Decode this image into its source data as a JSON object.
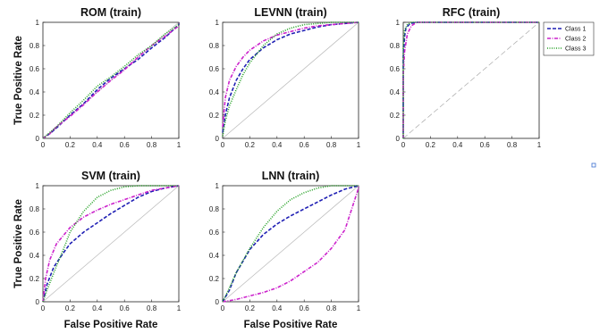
{
  "chart_data": [
    {
      "type": "line",
      "title": "ROM (train)",
      "xlabel": "",
      "ylabel": "True Positive Rate",
      "xlim": [
        0,
        1
      ],
      "ylim": [
        0,
        1
      ],
      "xticks": [
        "0",
        "0.2",
        "0.4",
        "0.6",
        "0.8",
        "1"
      ],
      "yticks": [
        "0",
        "0.2",
        "0.4",
        "0.6",
        "0.8",
        "1"
      ],
      "series": [
        {
          "name": "Class 1",
          "color": "#1f1fb4",
          "style": "dash",
          "points": [
            [
              0,
              0
            ],
            [
              0.05,
              0.04
            ],
            [
              0.1,
              0.09
            ],
            [
              0.2,
              0.2
            ],
            [
              0.3,
              0.3
            ],
            [
              0.4,
              0.42
            ],
            [
              0.5,
              0.52
            ],
            [
              0.6,
              0.6
            ],
            [
              0.7,
              0.68
            ],
            [
              0.8,
              0.78
            ],
            [
              0.9,
              0.87
            ],
            [
              1,
              0.98
            ],
            [
              1,
              1
            ]
          ]
        },
        {
          "name": "Class 2",
          "color": "#cc22cc",
          "style": "dashdot",
          "points": [
            [
              0,
              0
            ],
            [
              0.05,
              0.04
            ],
            [
              0.1,
              0.1
            ],
            [
              0.2,
              0.19
            ],
            [
              0.3,
              0.29
            ],
            [
              0.4,
              0.4
            ],
            [
              0.5,
              0.5
            ],
            [
              0.6,
              0.59
            ],
            [
              0.7,
              0.7
            ],
            [
              0.8,
              0.8
            ],
            [
              0.9,
              0.88
            ],
            [
              1,
              0.97
            ],
            [
              1,
              1
            ]
          ]
        },
        {
          "name": "Class 3",
          "color": "#22a022",
          "style": "dot",
          "points": [
            [
              0,
              0
            ],
            [
              0.05,
              0.05
            ],
            [
              0.1,
              0.1
            ],
            [
              0.2,
              0.22
            ],
            [
              0.3,
              0.33
            ],
            [
              0.4,
              0.45
            ],
            [
              0.5,
              0.53
            ],
            [
              0.6,
              0.62
            ],
            [
              0.7,
              0.72
            ],
            [
              0.8,
              0.8
            ],
            [
              0.9,
              0.9
            ],
            [
              1,
              0.98
            ],
            [
              1,
              1
            ]
          ]
        }
      ]
    },
    {
      "type": "line",
      "title": "LEVNN (train)",
      "xlabel": "",
      "ylabel": "",
      "xlim": [
        0,
        1
      ],
      "ylim": [
        0,
        1
      ],
      "xticks": [
        "0",
        "0.2",
        "0.4",
        "0.6",
        "0.8",
        "1"
      ],
      "yticks": [
        "0",
        "0.2",
        "0.4",
        "0.6",
        "0.8",
        "1"
      ],
      "series": [
        {
          "name": "Class 1",
          "color": "#1f1fb4",
          "style": "dash",
          "points": [
            [
              0,
              0.05
            ],
            [
              0.02,
              0.2
            ],
            [
              0.05,
              0.35
            ],
            [
              0.1,
              0.5
            ],
            [
              0.15,
              0.6
            ],
            [
              0.2,
              0.68
            ],
            [
              0.3,
              0.78
            ],
            [
              0.4,
              0.85
            ],
            [
              0.5,
              0.9
            ],
            [
              0.6,
              0.93
            ],
            [
              0.7,
              0.96
            ],
            [
              0.8,
              0.98
            ],
            [
              0.9,
              0.99
            ],
            [
              1,
              1
            ]
          ]
        },
        {
          "name": "Class 2",
          "color": "#cc22cc",
          "style": "dashdot",
          "points": [
            [
              0,
              0.1
            ],
            [
              0.02,
              0.35
            ],
            [
              0.05,
              0.5
            ],
            [
              0.1,
              0.62
            ],
            [
              0.15,
              0.7
            ],
            [
              0.2,
              0.76
            ],
            [
              0.3,
              0.84
            ],
            [
              0.4,
              0.89
            ],
            [
              0.5,
              0.92
            ],
            [
              0.6,
              0.95
            ],
            [
              0.7,
              0.97
            ],
            [
              0.8,
              0.98
            ],
            [
              0.9,
              0.99
            ],
            [
              1,
              1
            ]
          ]
        },
        {
          "name": "Class 3",
          "color": "#22a022",
          "style": "dot",
          "points": [
            [
              0,
              0.02
            ],
            [
              0.02,
              0.15
            ],
            [
              0.05,
              0.28
            ],
            [
              0.1,
              0.42
            ],
            [
              0.15,
              0.55
            ],
            [
              0.2,
              0.65
            ],
            [
              0.3,
              0.8
            ],
            [
              0.4,
              0.9
            ],
            [
              0.5,
              0.95
            ],
            [
              0.6,
              0.98
            ],
            [
              0.7,
              0.99
            ],
            [
              0.8,
              1
            ],
            [
              1,
              1
            ]
          ]
        }
      ]
    },
    {
      "type": "line",
      "title": "RFC (train)",
      "xlabel": "",
      "ylabel": "",
      "xlim": [
        0,
        1
      ],
      "ylim": [
        0,
        1
      ],
      "xticks": [
        "0",
        "0.2",
        "0.4",
        "0.6",
        "0.8",
        "1"
      ],
      "yticks": [
        "0",
        "0.2",
        "0.4",
        "0.6",
        "0.8",
        "1"
      ],
      "legend": {
        "position": "right",
        "entries": [
          "Class 1",
          "Class 2",
          "Class 3"
        ]
      },
      "series": [
        {
          "name": "Class 1",
          "color": "#1f1fb4",
          "style": "dash",
          "points": [
            [
              0,
              0
            ],
            [
              0,
              0.7
            ],
            [
              0.01,
              0.88
            ],
            [
              0.02,
              0.95
            ],
            [
              0.05,
              0.99
            ],
            [
              0.1,
              1
            ],
            [
              1,
              1
            ]
          ]
        },
        {
          "name": "Class 2",
          "color": "#cc22cc",
          "style": "dashdot",
          "points": [
            [
              0,
              0
            ],
            [
              0,
              0.55
            ],
            [
              0.01,
              0.75
            ],
            [
              0.03,
              0.9
            ],
            [
              0.06,
              0.97
            ],
            [
              0.1,
              1
            ],
            [
              1,
              1
            ]
          ]
        },
        {
          "name": "Class 3",
          "color": "#22a022",
          "style": "dot",
          "points": [
            [
              0,
              0
            ],
            [
              0,
              0.8
            ],
            [
              0.01,
              0.93
            ],
            [
              0.03,
              0.98
            ],
            [
              0.06,
              1
            ],
            [
              1,
              1
            ]
          ]
        }
      ]
    },
    {
      "type": "line",
      "title": "SVM (train)",
      "xlabel": "False Positive Rate",
      "ylabel": "True Positive Rate",
      "xlim": [
        0,
        1
      ],
      "ylim": [
        0,
        1
      ],
      "xticks": [
        "0",
        "0.2",
        "0.4",
        "0.6",
        "0.8",
        "1"
      ],
      "yticks": [
        "0",
        "0.2",
        "0.4",
        "0.6",
        "0.8",
        "1"
      ],
      "series": [
        {
          "name": "Class 1",
          "color": "#1f1fb4",
          "style": "dash",
          "points": [
            [
              0,
              0
            ],
            [
              0.03,
              0.15
            ],
            [
              0.08,
              0.3
            ],
            [
              0.15,
              0.42
            ],
            [
              0.2,
              0.5
            ],
            [
              0.3,
              0.6
            ],
            [
              0.4,
              0.68
            ],
            [
              0.5,
              0.76
            ],
            [
              0.6,
              0.83
            ],
            [
              0.7,
              0.9
            ],
            [
              0.8,
              0.95
            ],
            [
              0.9,
              0.98
            ],
            [
              1,
              1
            ]
          ]
        },
        {
          "name": "Class 2",
          "color": "#cc22cc",
          "style": "dashdot",
          "points": [
            [
              0,
              0
            ],
            [
              0.02,
              0.2
            ],
            [
              0.05,
              0.36
            ],
            [
              0.1,
              0.5
            ],
            [
              0.2,
              0.64
            ],
            [
              0.3,
              0.73
            ],
            [
              0.4,
              0.79
            ],
            [
              0.5,
              0.84
            ],
            [
              0.6,
              0.88
            ],
            [
              0.7,
              0.92
            ],
            [
              0.8,
              0.96
            ],
            [
              0.9,
              0.98
            ],
            [
              1,
              1
            ]
          ]
        },
        {
          "name": "Class 3",
          "color": "#22a022",
          "style": "dot",
          "points": [
            [
              0,
              0
            ],
            [
              0.03,
              0.1
            ],
            [
              0.08,
              0.25
            ],
            [
              0.15,
              0.45
            ],
            [
              0.2,
              0.6
            ],
            [
              0.3,
              0.78
            ],
            [
              0.4,
              0.9
            ],
            [
              0.5,
              0.96
            ],
            [
              0.6,
              0.99
            ],
            [
              0.7,
              1
            ],
            [
              1,
              1
            ]
          ]
        }
      ]
    },
    {
      "type": "line",
      "title": "LNN (train)",
      "xlabel": "False Positive Rate",
      "ylabel": "",
      "xlim": [
        0,
        1
      ],
      "ylim": [
        0,
        1
      ],
      "xticks": [
        "0",
        "0.2",
        "0.4",
        "0.6",
        "0.8",
        "1"
      ],
      "yticks": [
        "0",
        "0.2",
        "0.4",
        "0.6",
        "0.8",
        "1"
      ],
      "series": [
        {
          "name": "Class 1",
          "color": "#1f1fb4",
          "style": "dash",
          "points": [
            [
              0,
              0
            ],
            [
              0.05,
              0.1
            ],
            [
              0.1,
              0.25
            ],
            [
              0.2,
              0.45
            ],
            [
              0.3,
              0.58
            ],
            [
              0.4,
              0.67
            ],
            [
              0.5,
              0.74
            ],
            [
              0.6,
              0.8
            ],
            [
              0.7,
              0.86
            ],
            [
              0.8,
              0.92
            ],
            [
              0.9,
              0.97
            ],
            [
              1,
              1
            ]
          ]
        },
        {
          "name": "Class 2",
          "color": "#cc22cc",
          "style": "dashdot",
          "points": [
            [
              0,
              0
            ],
            [
              0.1,
              0.02
            ],
            [
              0.2,
              0.05
            ],
            [
              0.3,
              0.08
            ],
            [
              0.4,
              0.12
            ],
            [
              0.5,
              0.18
            ],
            [
              0.6,
              0.26
            ],
            [
              0.7,
              0.34
            ],
            [
              0.8,
              0.46
            ],
            [
              0.9,
              0.62
            ],
            [
              0.95,
              0.8
            ],
            [
              1,
              0.98
            ],
            [
              1,
              1
            ]
          ]
        },
        {
          "name": "Class 3",
          "color": "#22a022",
          "style": "dot",
          "points": [
            [
              0,
              0
            ],
            [
              0.05,
              0.12
            ],
            [
              0.1,
              0.25
            ],
            [
              0.2,
              0.46
            ],
            [
              0.3,
              0.64
            ],
            [
              0.4,
              0.78
            ],
            [
              0.5,
              0.88
            ],
            [
              0.6,
              0.94
            ],
            [
              0.7,
              0.98
            ],
            [
              0.8,
              1
            ],
            [
              1,
              1
            ]
          ]
        }
      ]
    }
  ]
}
